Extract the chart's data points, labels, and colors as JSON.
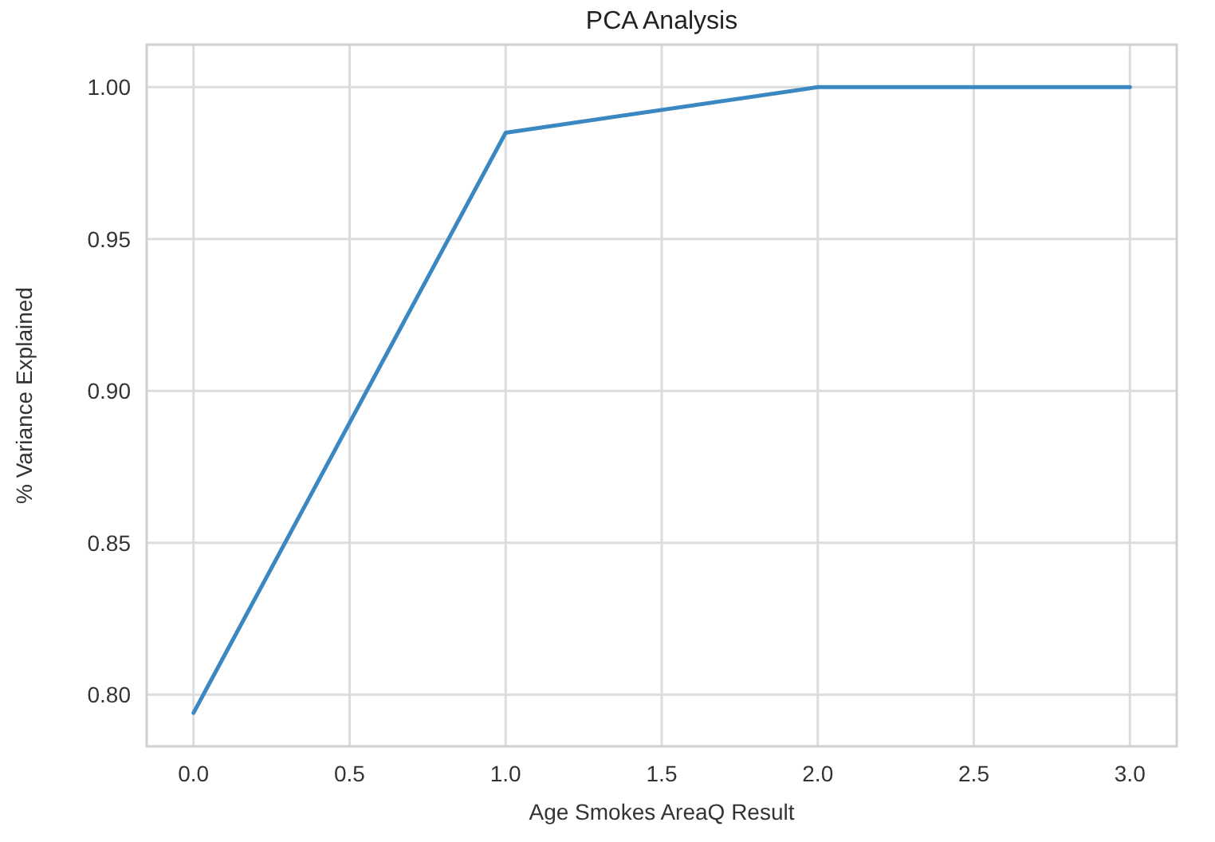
{
  "chart_data": {
    "type": "line",
    "title": "PCA Analysis",
    "xlabel": "Age Smokes AreaQ Result",
    "ylabel": "% Variance Explained",
    "x": [
      0,
      1,
      2,
      3
    ],
    "series": [
      {
        "color": "#3a87c2",
        "values": [
          0.794,
          0.985,
          1.0,
          1.0
        ]
      }
    ],
    "xlim": [
      -0.15,
      3.15
    ],
    "xticks": [
      {
        "value": 0,
        "label": "0.0"
      },
      {
        "value": 0.5,
        "label": "0.5"
      },
      {
        "value": 1,
        "label": "1.0"
      },
      {
        "value": 1.5,
        "label": "1.5"
      },
      {
        "value": 2,
        "label": "2.0"
      },
      {
        "value": 2.5,
        "label": "2.5"
      },
      {
        "value": 3,
        "label": "3.0"
      }
    ],
    "ylim": [
      0.783,
      1.014
    ],
    "yticks": [
      {
        "value": 0.8,
        "label": "0.80"
      },
      {
        "value": 0.85,
        "label": "0.85"
      },
      {
        "value": 0.9,
        "label": "0.90"
      },
      {
        "value": 0.95,
        "label": "0.95"
      },
      {
        "value": 1.0,
        "label": "1.00"
      }
    ],
    "grid": true,
    "line_style": "solid",
    "marker": "none"
  }
}
